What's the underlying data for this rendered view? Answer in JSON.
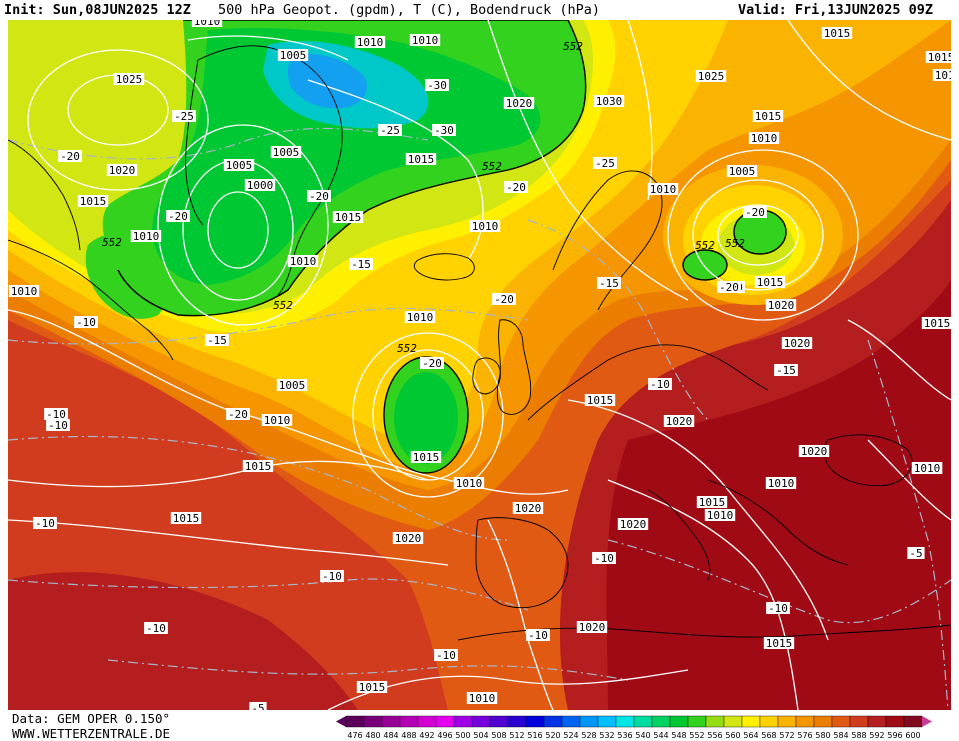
{
  "header": {
    "init": "Init: Sun,08JUN2025 12Z",
    "title": "500 hPa Geopot. (gpdm), T (C), Bodendruck (hPa)",
    "valid": "Valid: Fri,13JUN2025 09Z"
  },
  "footer": {
    "data": "Data: GEM OPER 0.150°",
    "site": "WWW.WETTERZENTRALE.DE"
  },
  "colors": {
    "c_548": "#00c832",
    "c_552": "#32d21e",
    "c_556": "#d2e614",
    "c_560": "#fff000",
    "c_564": "#ffd200",
    "c_568": "#fab400",
    "c_572": "#f59600",
    "c_576": "#eb7d00",
    "c_580": "#e15a14",
    "c_584": "#d23c1e",
    "c_588": "#b41e1e",
    "c_592": "#a00a14",
    "c_low_cyan": "#00c8c8",
    "c_low_blue": "#14a0f0",
    "isobar": "#ffffff",
    "isotherm": "#aab4c8",
    "coast": "#000000"
  },
  "scale": {
    "labels": [
      "476",
      "480",
      "484",
      "488",
      "492",
      "496",
      "500",
      "504",
      "508",
      "512",
      "516",
      "520",
      "524",
      "528",
      "532",
      "536",
      "540",
      "544",
      "548",
      "552",
      "556",
      "560",
      "564",
      "568",
      "572",
      "576",
      "580",
      "584",
      "588",
      "592",
      "596",
      "600"
    ],
    "colors": [
      "#5a005a",
      "#780078",
      "#960096",
      "#b400b4",
      "#d200d2",
      "#e600f0",
      "#a000e6",
      "#7800dc",
      "#5000d2",
      "#2800d2",
      "#0000dc",
      "#0032e6",
      "#0064f0",
      "#0096fa",
      "#00beff",
      "#00e6e6",
      "#00dca0",
      "#00d264",
      "#00c832",
      "#32d21e",
      "#96dc14",
      "#d2e614",
      "#fff000",
      "#ffd200",
      "#fab400",
      "#f59600",
      "#eb7d00",
      "#e15a14",
      "#d23c1e",
      "#b41e1e",
      "#a00a14",
      "#820a1e"
    ]
  },
  "pressure_labels": [
    "1010",
    "1010",
    "1010",
    "1005",
    "1025",
    "1020",
    "1030",
    "1025",
    "1015",
    "1015",
    "1010",
    "1005",
    "1000",
    "1005",
    "1015",
    "1020",
    "1015",
    "1010",
    "1010",
    "1015",
    "1010",
    "1015",
    "1005",
    "1015",
    "1015",
    "1020",
    "1010",
    "1010",
    "1005",
    "1025",
    "1010",
    "1015",
    "1015",
    "1010",
    "1020",
    "1015",
    "1020",
    "1020",
    "1010",
    "1015",
    "1020",
    "1015",
    "1020",
    "1020",
    "1015",
    "1015",
    "1010",
    "1010",
    "1010",
    "1010",
    "1020",
    "1010"
  ],
  "temp_labels": [
    "-25",
    "-30",
    "-25",
    "-30",
    "-20",
    "-25",
    "-20",
    "-20",
    "-20",
    "-20",
    "-15",
    "-20",
    "-15",
    "-20",
    "-15",
    "-10",
    "-15",
    "-20",
    "-10",
    "-10",
    "-15",
    "-10",
    "-10",
    "-10",
    "-10",
    "-10",
    "-10",
    "-10",
    "-5",
    "-10",
    "-20",
    "-20",
    "-5"
  ],
  "geo_labels": [
    "552",
    "552",
    "552",
    "552",
    "552",
    "552",
    "552"
  ]
}
